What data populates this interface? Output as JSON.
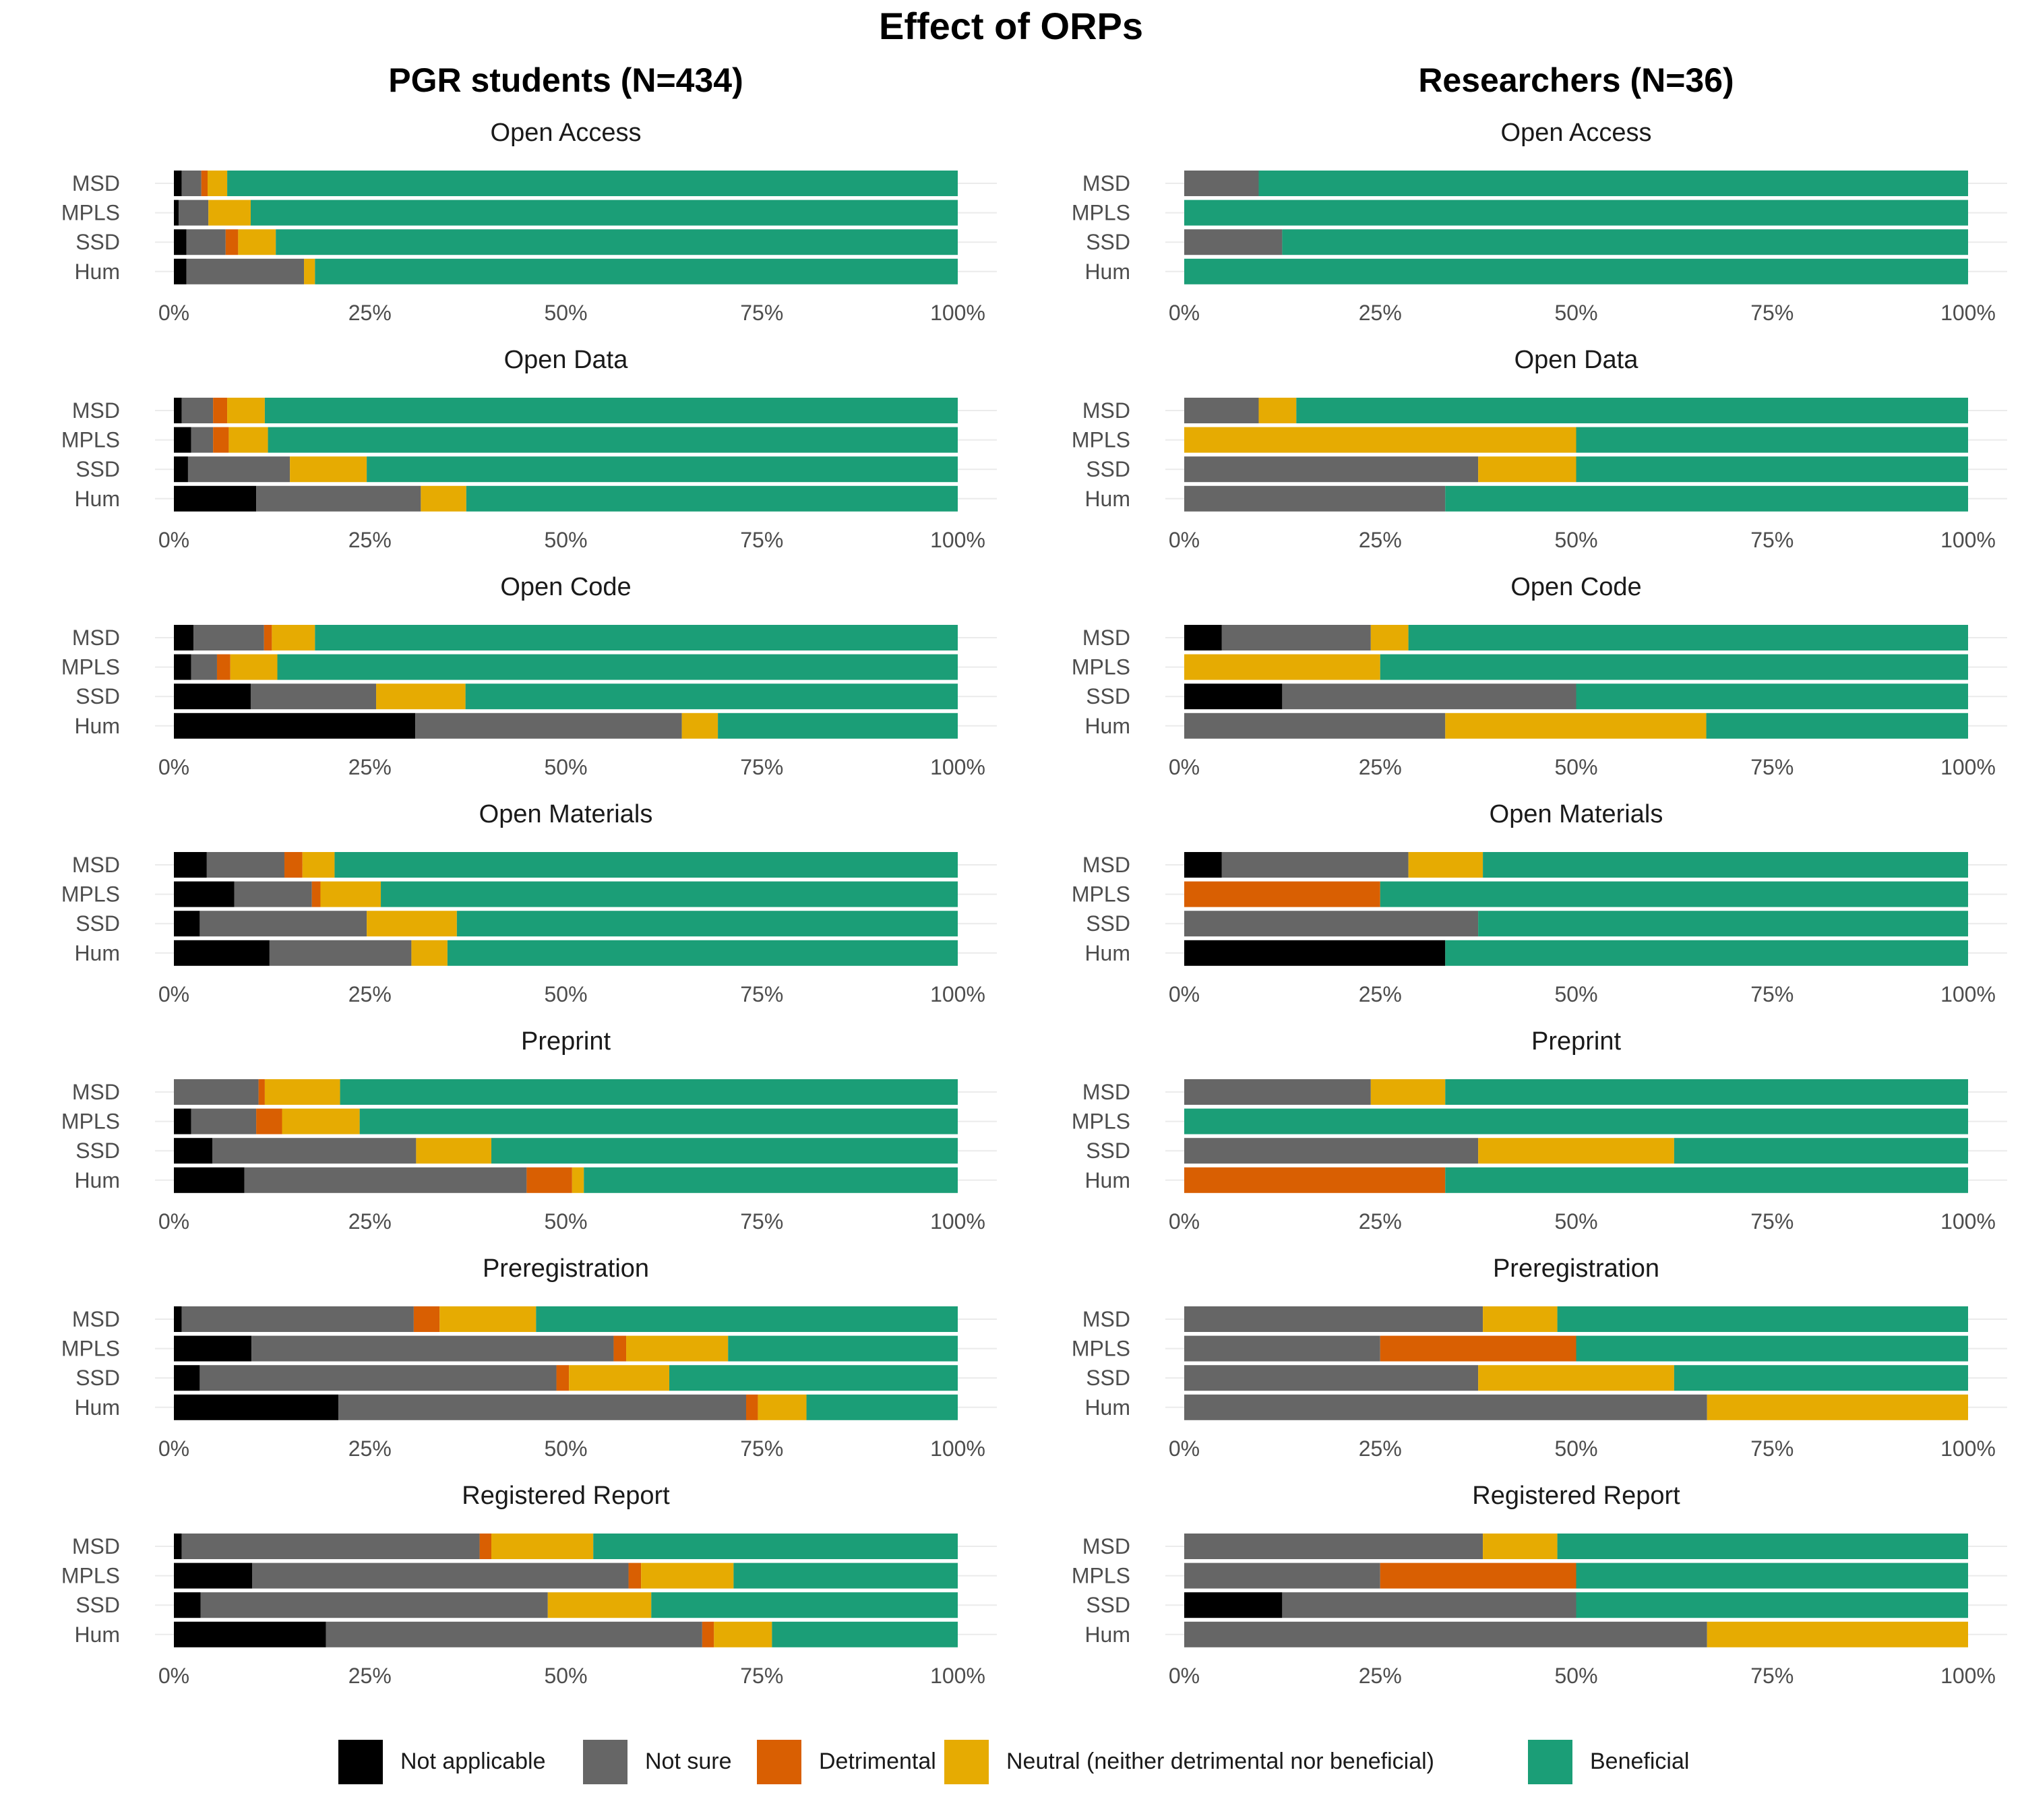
{
  "title": "Effect of ORPs",
  "colors": {
    "Not applicable": "#000000",
    "Not sure": "#666666",
    "Detrimental": "#d95f02",
    "Neutral (neither detrimental nor beneficial)": "#e6ab02",
    "Beneficial": "#1b9e77"
  },
  "legend": [
    "Not applicable",
    "Not sure",
    "Detrimental",
    "Neutral (neither detrimental nor beneficial)",
    "Beneficial"
  ],
  "chart_data": {
    "type": "bar",
    "orientation": "horizontal",
    "stacked": true,
    "value_unit": "percent",
    "xlim": [
      0,
      100
    ],
    "x_ticks": [
      "0%",
      "25%",
      "50%",
      "75%",
      "100%"
    ],
    "categories": [
      "MSD",
      "MPLS",
      "SSD",
      "Hum"
    ],
    "segments": [
      "Not applicable",
      "Not sure",
      "Detrimental",
      "Neutral (neither detrimental nor beneficial)",
      "Beneficial"
    ],
    "legend_position": "bottom",
    "groups": [
      {
        "title": "PGR students (N=434)",
        "panels": [
          {
            "title": "Open Access",
            "values": {
              "MSD": [
                1,
                2.5,
                0.8,
                2.5,
                93.2
              ],
              "MPLS": [
                0.6,
                3.8,
                0,
                5.4,
                90.2
              ],
              "SSD": [
                1.6,
                5,
                1.6,
                4.8,
                87
              ],
              "Hum": [
                1.6,
                15,
                0,
                1.4,
                82
              ]
            }
          },
          {
            "title": "Open Data",
            "values": {
              "MSD": [
                1,
                4,
                1.8,
                4.8,
                88.4
              ],
              "MPLS": [
                2.2,
                2.8,
                2,
                5,
                88
              ],
              "SSD": [
                1.8,
                13,
                0,
                9.8,
                75.4
              ],
              "Hum": [
                10.5,
                21,
                0,
                5.8,
                62.7
              ]
            }
          },
          {
            "title": "Open Code",
            "values": {
              "MSD": [
                2.5,
                9,
                1,
                5.5,
                82
              ],
              "MPLS": [
                2.2,
                3.3,
                1.7,
                6,
                86.8
              ],
              "SSD": [
                9.8,
                16,
                0,
                11.4,
                62.8
              ],
              "Hum": [
                30.8,
                34,
                0,
                4.6,
                30.6
              ]
            }
          },
          {
            "title": "Open Materials",
            "values": {
              "MSD": [
                4.2,
                9.9,
                2.3,
                4.1,
                79.5
              ],
              "MPLS": [
                7.7,
                9.9,
                1.1,
                7.7,
                73.6
              ],
              "SSD": [
                3.3,
                21.3,
                0,
                11.5,
                63.9
              ],
              "Hum": [
                12.2,
                18.1,
                0,
                4.6,
                65.1
              ]
            }
          },
          {
            "title": "Preprint",
            "values": {
              "MSD": [
                0,
                10.8,
                0.8,
                9.6,
                78.8
              ],
              "MPLS": [
                2.2,
                8.3,
                3.3,
                9.9,
                76.3
              ],
              "SSD": [
                4.9,
                26,
                0,
                9.6,
                59.5
              ],
              "Hum": [
                9,
                36,
                5.8,
                1.5,
                47.7
              ]
            }
          },
          {
            "title": "Preregistration",
            "values": {
              "MSD": [
                1,
                29.6,
                3.3,
                12.3,
                53.8
              ],
              "MPLS": [
                9.9,
                46.2,
                1.6,
                13,
                29.3
              ],
              "SSD": [
                3.3,
                45.5,
                1.6,
                12.8,
                36.8
              ],
              "Hum": [
                21,
                52,
                1.5,
                6.2,
                19.3
              ]
            }
          },
          {
            "title": "Registered Report",
            "values": {
              "MSD": [
                1,
                38,
                1.5,
                13,
                46.5
              ],
              "MPLS": [
                10,
                48,
                1.6,
                11.8,
                28.6
              ],
              "SSD": [
                3.4,
                44.3,
                0,
                13.2,
                39.1
              ],
              "Hum": [
                19.4,
                48,
                1.5,
                7.4,
                23.7
              ]
            }
          }
        ]
      },
      {
        "title": "Researchers (N=36)",
        "panels": [
          {
            "title": "Open Access",
            "values": {
              "MSD": [
                0,
                9.5,
                0,
                0,
                90.5
              ],
              "MPLS": [
                0,
                0,
                0,
                0,
                100
              ],
              "SSD": [
                0,
                12.5,
                0,
                0,
                87.5
              ],
              "Hum": [
                0,
                0,
                0,
                0,
                100
              ]
            }
          },
          {
            "title": "Open Data",
            "values": {
              "MSD": [
                0,
                9.5,
                0,
                4.8,
                85.7
              ],
              "MPLS": [
                0,
                0,
                0,
                50,
                50
              ],
              "SSD": [
                0,
                37.5,
                0,
                12.5,
                50
              ],
              "Hum": [
                0,
                33.3,
                0,
                0,
                66.7
              ]
            }
          },
          {
            "title": "Open Code",
            "values": {
              "MSD": [
                4.8,
                19,
                0,
                4.8,
                71.4
              ],
              "MPLS": [
                0,
                0,
                0,
                25,
                75
              ],
              "SSD": [
                12.5,
                37.5,
                0,
                0,
                50
              ],
              "Hum": [
                0,
                33.3,
                0,
                33.3,
                33.4
              ]
            }
          },
          {
            "title": "Open Materials",
            "values": {
              "MSD": [
                4.8,
                23.8,
                0,
                9.5,
                61.9
              ],
              "MPLS": [
                0,
                0,
                25,
                0,
                75
              ],
              "SSD": [
                0,
                37.5,
                0,
                0,
                62.5
              ],
              "Hum": [
                33.3,
                0,
                0,
                0,
                66.7
              ]
            }
          },
          {
            "title": "Preprint",
            "values": {
              "MSD": [
                0,
                23.8,
                0,
                9.5,
                66.7
              ],
              "MPLS": [
                0,
                0,
                0,
                0,
                100
              ],
              "SSD": [
                0,
                37.5,
                0,
                25,
                37.5
              ],
              "Hum": [
                0,
                0,
                33.3,
                0,
                66.7
              ]
            }
          },
          {
            "title": "Preregistration",
            "values": {
              "MSD": [
                0,
                38.1,
                0,
                9.5,
                52.4
              ],
              "MPLS": [
                0,
                25,
                25,
                0,
                50
              ],
              "SSD": [
                0,
                37.5,
                0,
                25,
                37.5
              ],
              "Hum": [
                0,
                66.7,
                0,
                33.3,
                0
              ]
            }
          },
          {
            "title": "Registered Report",
            "values": {
              "MSD": [
                0,
                38.1,
                0,
                9.5,
                52.4
              ],
              "MPLS": [
                0,
                25,
                25,
                0,
                50
              ],
              "SSD": [
                12.5,
                37.5,
                0,
                0,
                50
              ],
              "Hum": [
                0,
                66.7,
                0,
                33.3,
                0
              ]
            }
          }
        ]
      }
    ]
  }
}
